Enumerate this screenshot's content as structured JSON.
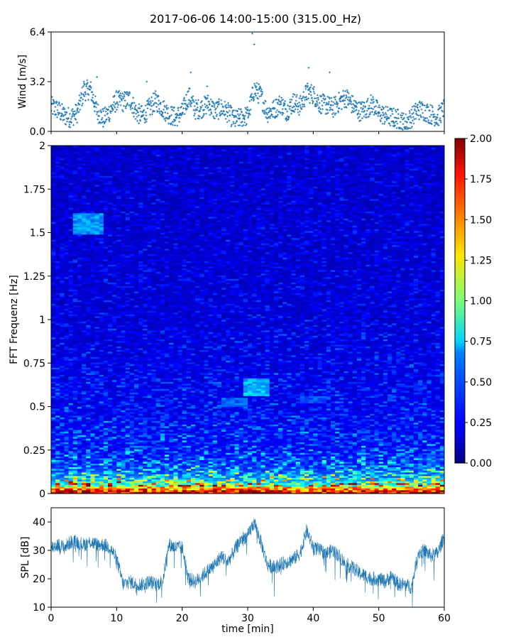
{
  "title": "2017-06-06 14:00-15:00 (315.00_Hz)",
  "colors": {
    "series": "#1f77b4",
    "frame": "#000000",
    "background": "#ffffff"
  },
  "chart_data": [
    {
      "type": "scatter",
      "ylabel": "Wind [m/s]",
      "xlim": [
        0,
        60
      ],
      "ylim": [
        0,
        6.4
      ],
      "yticks": [
        "0.0",
        "3.2",
        "6.4"
      ],
      "xticks_minor": [
        0,
        10,
        20,
        30,
        40,
        50,
        60
      ],
      "marker": "+",
      "x": [
        0,
        1,
        2,
        3,
        4,
        5,
        6,
        7,
        8,
        9,
        10,
        11,
        12,
        13,
        14,
        15,
        16,
        17,
        18,
        19,
        20,
        21,
        22,
        23,
        24,
        25,
        26,
        27,
        28,
        29,
        30,
        31,
        32,
        33,
        34,
        35,
        36,
        37,
        38,
        39,
        40,
        41,
        42,
        43,
        44,
        45,
        46,
        47,
        48,
        49,
        50,
        51,
        52,
        53,
        54,
        55,
        56,
        57,
        58,
        59,
        60
      ],
      "y": [
        1.6,
        1.4,
        1.0,
        0.9,
        1.2,
        2.6,
        2.7,
        1.3,
        0.8,
        1.3,
        2.0,
        1.9,
        2.1,
        1.2,
        1.0,
        1.5,
        2.0,
        1.5,
        1.1,
        0.9,
        1.2,
        2.3,
        1.4,
        1.5,
        1.8,
        1.3,
        1.5,
        1.2,
        0.7,
        0.9,
        1.0,
        2.7,
        2.3,
        1.2,
        1.4,
        1.8,
        1.3,
        1.9,
        1.6,
        2.5,
        2.4,
        1.8,
        1.7,
        1.5,
        1.9,
        2.2,
        1.7,
        1.3,
        1.4,
        1.8,
        1.2,
        1.0,
        0.9,
        0.8,
        0.5,
        0.9,
        1.4,
        1.3,
        1.1,
        0.9,
        1.5
      ],
      "peaks": [
        [
          5.0,
          3.2
        ],
        [
          7.0,
          3.5
        ],
        [
          14.6,
          3.2
        ],
        [
          21.3,
          3.8
        ],
        [
          23.8,
          2.9
        ],
        [
          30.7,
          6.3
        ],
        [
          31.0,
          5.6
        ],
        [
          39.3,
          4.1
        ],
        [
          42.5,
          3.8
        ]
      ]
    },
    {
      "type": "heatmap",
      "ylabel": "FFT Frequenz [Hz]",
      "xlim": [
        0,
        60
      ],
      "ylim": [
        0,
        2
      ],
      "yticks": [
        "0",
        "0.25",
        "0.5",
        "0.75",
        "1",
        "1.25",
        "1.5",
        "1.75",
        "2"
      ],
      "colormap": "jet",
      "color_range": [
        0.0,
        2.0
      ],
      "colorbar_ticks": [
        "0.00",
        "0.25",
        "0.50",
        "0.75",
        "1.00",
        "1.25",
        "1.50",
        "1.75",
        "2.00"
      ],
      "background_level": 0.2,
      "energy_by_frequency": [
        [
          0.0,
          2.0
        ],
        [
          0.02,
          1.6
        ],
        [
          0.05,
          1.1
        ],
        [
          0.1,
          0.7
        ],
        [
          0.15,
          0.5
        ],
        [
          0.25,
          0.35
        ],
        [
          0.5,
          0.27
        ],
        [
          1.0,
          0.2
        ],
        [
          2.0,
          0.17
        ]
      ],
      "features": [
        {
          "t_start": 3.2,
          "t_end": 8.2,
          "f_low": 1.49,
          "f_high": 1.61,
          "level": 0.55
        },
        {
          "t_start": 29.5,
          "t_end": 33.5,
          "f_low": 0.56,
          "f_high": 0.66,
          "level": 0.6
        },
        {
          "t_start": 26.0,
          "t_end": 30.0,
          "f_low": 0.5,
          "f_high": 0.55,
          "level": 0.45
        },
        {
          "t_start": 38.0,
          "t_end": 42.0,
          "f_low": 0.52,
          "f_high": 0.56,
          "level": 0.4
        }
      ]
    },
    {
      "type": "line",
      "xlabel": "time [min]",
      "ylabel": "SPL [dB]",
      "xlim": [
        0,
        60
      ],
      "ylim": [
        10,
        45
      ],
      "xticks": [
        "0",
        "10",
        "20",
        "30",
        "40",
        "50",
        "60"
      ],
      "yticks": [
        "10",
        "20",
        "30",
        "40"
      ],
      "x": [
        0,
        1,
        2,
        3,
        4,
        5,
        6,
        7,
        8,
        9,
        10,
        11,
        12,
        13,
        14,
        15,
        16,
        17,
        18,
        19,
        20,
        21,
        22,
        23,
        24,
        25,
        26,
        27,
        28,
        29,
        30,
        31,
        32,
        33,
        34,
        35,
        36,
        37,
        38,
        39,
        40,
        41,
        42,
        43,
        44,
        45,
        46,
        47,
        48,
        49,
        50,
        51,
        52,
        53,
        54,
        55,
        56,
        57,
        58,
        59,
        60
      ],
      "y": [
        31,
        32,
        31,
        33,
        33,
        32,
        33,
        32,
        32,
        31,
        27,
        18,
        19,
        18,
        18,
        19,
        18,
        19,
        32,
        31,
        31,
        20,
        19,
        21,
        23,
        25,
        28,
        26,
        30,
        34,
        35,
        40,
        33,
        25,
        24,
        25,
        26,
        27,
        29,
        37,
        31,
        30,
        29,
        30,
        28,
        25,
        24,
        22,
        21,
        20,
        20,
        19,
        21,
        18,
        18,
        17,
        29,
        30,
        28,
        29,
        35
      ]
    }
  ]
}
